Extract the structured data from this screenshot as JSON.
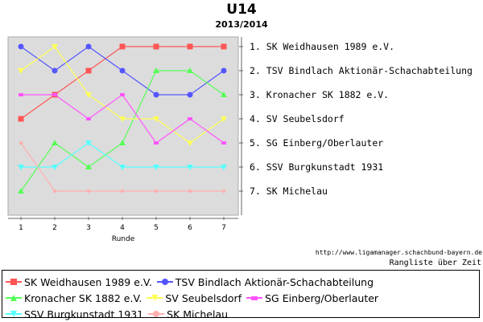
{
  "chart_data": {
    "type": "line",
    "title": "U14",
    "subtitle": "2013/2014",
    "xlabel": "Runde",
    "x": [
      1,
      2,
      3,
      4,
      5,
      6,
      7
    ],
    "y_axis": "rank",
    "ylim": [
      1,
      7
    ],
    "y_inverted": true,
    "grid": false,
    "legend_position": "bottom",
    "series": [
      {
        "name": "SK Weidhausen 1989 e.V.",
        "color": "#ff5555",
        "marker": "square",
        "values": [
          4,
          3,
          2,
          1,
          1,
          1,
          1
        ]
      },
      {
        "name": "TSV Bindlach Aktionär-Schachabteilung",
        "color": "#5555ff",
        "marker": "circle",
        "values": [
          1,
          2,
          1,
          2,
          3,
          3,
          2
        ]
      },
      {
        "name": "Kronacher SK 1882 e.V.",
        "color": "#55ff55",
        "marker": "triangle-up",
        "values": [
          7,
          5,
          6,
          5,
          2,
          2,
          3
        ]
      },
      {
        "name": "SV Seubelsdorf",
        "color": "#ffff55",
        "marker": "triangle-down",
        "values": [
          2,
          1,
          3,
          4,
          4,
          5,
          4
        ]
      },
      {
        "name": "SG Einberg/Oberlauter",
        "color": "#ff55ff",
        "marker": "square-small",
        "values": [
          3,
          3,
          4,
          3,
          5,
          4,
          5
        ]
      },
      {
        "name": "SSV Burgkunstadt 1931",
        "color": "#55ffff",
        "marker": "triangle-down",
        "values": [
          6,
          6,
          5,
          6,
          6,
          6,
          6
        ]
      },
      {
        "name": "SK Michelau",
        "color": "#ffafaf",
        "marker": "circle",
        "values": [
          5,
          7,
          7,
          7,
          7,
          7,
          7
        ]
      }
    ],
    "rank_labels": [
      "1. SK Weidhausen 1989 e.V.",
      "2. TSV Bindlach Aktionär-Schachabteilung",
      "3. Kronacher SK 1882 e.V.",
      "4. SV Seubelsdorf",
      "5. SG Einberg/Oberlauter",
      "6. SSV Burgkunstadt 1931",
      "7. SK Michelau"
    ],
    "source": "http://www.ligamanager.schachbund-bayern.de",
    "caption": "Rangliste über Zeit"
  }
}
